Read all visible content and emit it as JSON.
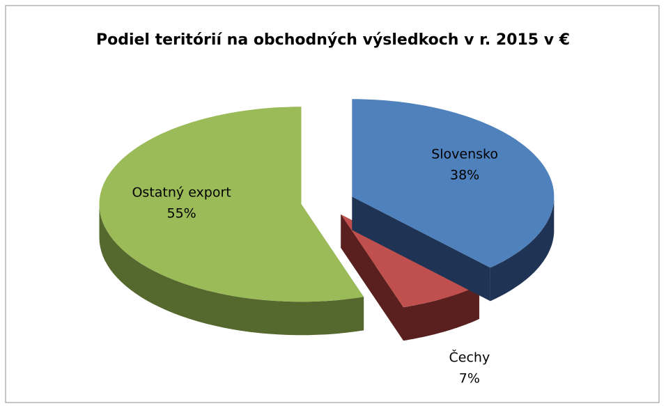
{
  "chart_data": {
    "type": "pie",
    "title": "Podiel teritórií na obchodných výsledkoch v r. 2015 v €",
    "categories": [
      "Slovensko",
      "Čechy",
      "Ostatný export"
    ],
    "values": [
      38,
      7,
      55
    ],
    "value_labels": [
      "38%",
      "7%",
      "55%"
    ],
    "colors": [
      "#4f81bd",
      "#c0504d",
      "#9bbb59"
    ],
    "side_colors": [
      "#1f3354",
      "#5a2020",
      "#55682e"
    ],
    "exploded": true,
    "three_d": true
  }
}
